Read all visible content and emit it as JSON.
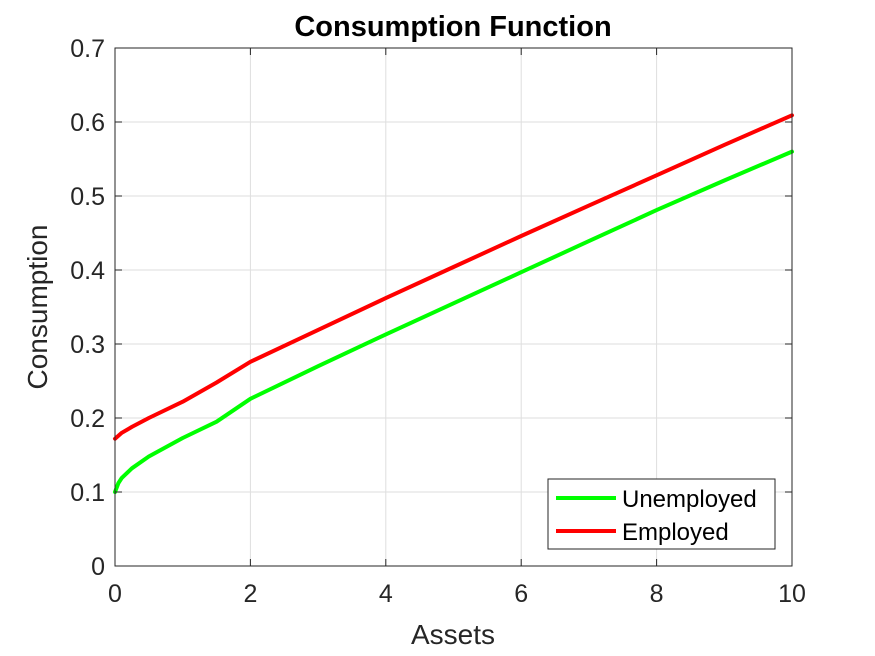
{
  "chart_data": {
    "type": "line",
    "title": "Consumption Function",
    "xlabel": "Assets",
    "ylabel": "Consumption",
    "xlim": [
      0,
      10
    ],
    "ylim": [
      0,
      0.7
    ],
    "xticks": [
      0,
      2,
      4,
      6,
      8,
      10
    ],
    "yticks": [
      0,
      0.1,
      0.2,
      0.3,
      0.4,
      0.5,
      0.6,
      0.7
    ],
    "grid": true,
    "legend_position": "bottom-right",
    "series": [
      {
        "name": "Unemployed",
        "color": "#00ff00",
        "x": [
          0,
          0.05,
          0.1,
          0.25,
          0.5,
          1,
          1.5,
          2,
          3,
          4,
          5,
          6,
          7,
          8,
          9,
          10
        ],
        "y": [
          0.1,
          0.112,
          0.119,
          0.132,
          0.148,
          0.173,
          0.195,
          0.226,
          0.27,
          0.313,
          0.355,
          0.397,
          0.439,
          0.481,
          0.521,
          0.56
        ]
      },
      {
        "name": "Employed",
        "color": "#ff0000",
        "x": [
          0,
          0.1,
          0.25,
          0.5,
          1,
          1.5,
          2,
          3,
          4,
          5,
          6,
          7,
          8,
          9,
          10
        ],
        "y": [
          0.172,
          0.18,
          0.188,
          0.2,
          0.222,
          0.248,
          0.276,
          0.319,
          0.362,
          0.404,
          0.446,
          0.487,
          0.528,
          0.569,
          0.609
        ]
      }
    ]
  }
}
